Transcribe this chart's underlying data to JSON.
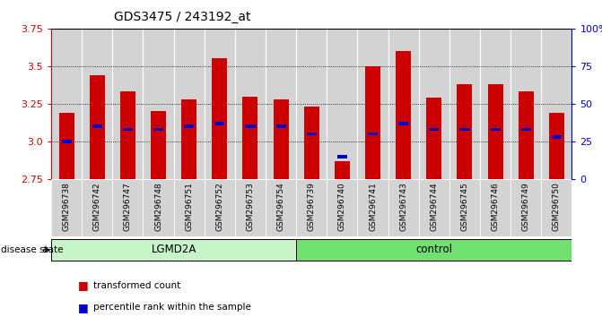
{
  "title": "GDS3475 / 243192_at",
  "samples": [
    "GSM296738",
    "GSM296742",
    "GSM296747",
    "GSM296748",
    "GSM296751",
    "GSM296752",
    "GSM296753",
    "GSM296754",
    "GSM296739",
    "GSM296740",
    "GSM296741",
    "GSM296743",
    "GSM296744",
    "GSM296745",
    "GSM296746",
    "GSM296749",
    "GSM296750"
  ],
  "groups": [
    "LGMD2A",
    "LGMD2A",
    "LGMD2A",
    "LGMD2A",
    "LGMD2A",
    "LGMD2A",
    "LGMD2A",
    "LGMD2A",
    "control",
    "control",
    "control",
    "control",
    "control",
    "control",
    "control",
    "control",
    "control"
  ],
  "red_values": [
    3.19,
    3.44,
    3.33,
    3.2,
    3.28,
    3.55,
    3.3,
    3.28,
    3.23,
    2.87,
    3.5,
    3.6,
    3.29,
    3.38,
    3.38,
    3.33,
    3.19
  ],
  "blue_percentiles": [
    25,
    35,
    33,
    33,
    35,
    37,
    35,
    35,
    30,
    15,
    30,
    37,
    33,
    33,
    33,
    33,
    28
  ],
  "ymin": 2.75,
  "ymax": 3.75,
  "yticks_left": [
    2.75,
    3.0,
    3.25,
    3.5,
    3.75
  ],
  "yticks_right": [
    0,
    25,
    50,
    75,
    100
  ],
  "grid_values": [
    3.0,
    3.25,
    3.5
  ],
  "lgmd2a_color": "#c8f5c8",
  "control_color": "#70e070",
  "bar_color": "#cc0000",
  "blue_color": "#0000cc",
  "axis_color_left": "#cc0000",
  "axis_color_right": "#0000cc",
  "cell_bg_color": "#d3d3d3",
  "plot_bg": "#ffffff",
  "bar_width": 0.5,
  "n_lgmd2a": 8,
  "n_control": 9
}
